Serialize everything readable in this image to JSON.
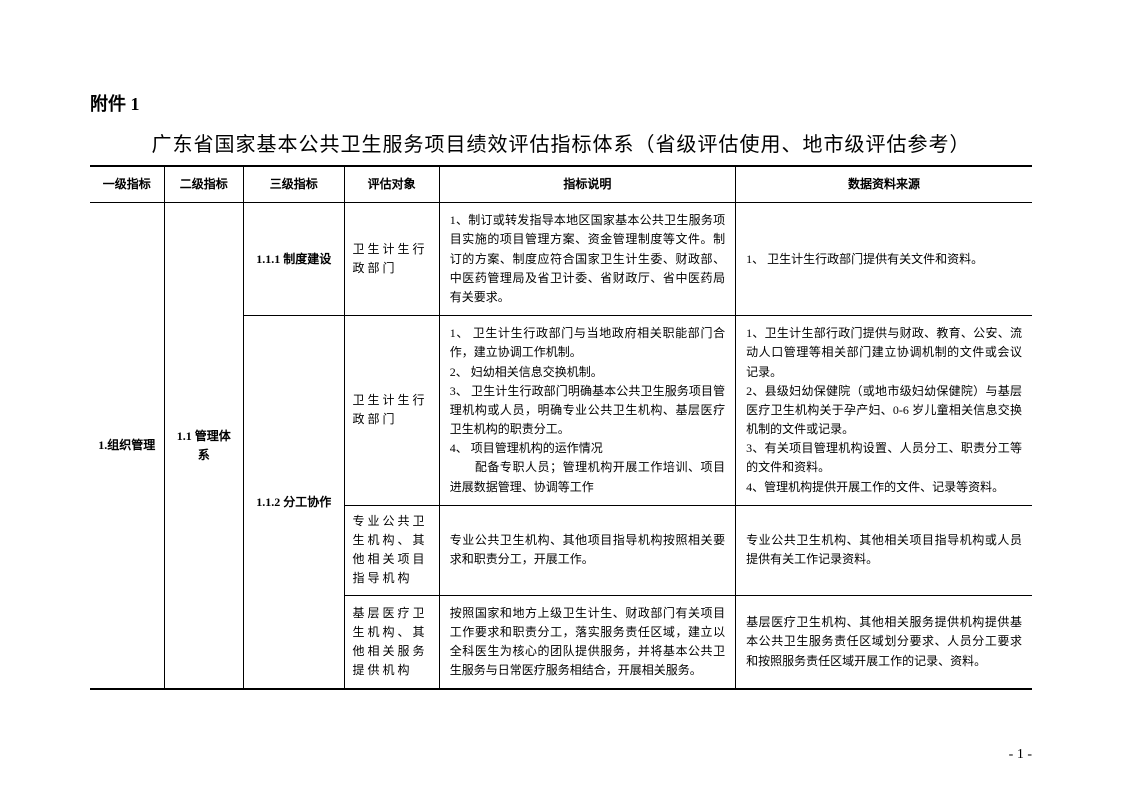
{
  "attachment_label": "附件 1",
  "main_title": "广东省国家基本公共卫生服务项目绩效评估指标体系（省级评估使用、地市级评估参考）",
  "page_number": "- 1 -",
  "headers": {
    "col1": "一级指标",
    "col2": "二级指标",
    "col3": "三级指标",
    "col4": "评估对象",
    "col5": "指标说明",
    "col6": "数据资料来源"
  },
  "level1": "1.组织管理",
  "level2": "1.1 管理体系",
  "rows": [
    {
      "level3": "1.1.1 制度建设",
      "target": "卫生计生行政部门",
      "desc": "1、制订或转发指导本地区国家基本公共卫生服务项目实施的项目管理方案、资金管理制度等文件。制订的方案、制度应符合国家卫生计生委、财政部、中医药管理局及省卫计委、省财政厅、省中医药局有关要求。",
      "source": "1、 卫生计生行政部门提供有关文件和资料。"
    },
    {
      "level3": "1.1.2 分工协作",
      "target": "卫生计生行政部门",
      "desc": "1、 卫生计生行政部门与当地政府相关职能部门合作，建立协调工作机制。\n2、 妇幼相关信息交换机制。\n3、 卫生计生行政部门明确基本公共卫生服务项目管理机构或人员，明确专业公共卫生机构、基层医疗卫生机构的职责分工。\n4、 项目管理机构的运作情况\n　　配备专职人员；管理机构开展工作培训、项目进展数据管理、协调等工作",
      "source": "1、卫生计生部行政门提供与财政、教育、公安、流动人口管理等相关部门建立协调机制的文件或会议记录。\n2、县级妇幼保健院（或地市级妇幼保健院）与基层医疗卫生机构关于孕产妇、0-6 岁儿童相关信息交换机制的文件或记录。\n3、有关项目管理机构设置、人员分工、职责分工等的文件和资料。\n4、管理机构提供开展工作的文件、记录等资料。"
    },
    {
      "target": "专业公共卫生机构、其他相关项目指导机构",
      "desc": "专业公共卫生机构、其他项目指导机构按照相关要求和职责分工，开展工作。",
      "source": "专业公共卫生机构、其他相关项目指导机构或人员提供有关工作记录资料。"
    },
    {
      "target": "基层医疗卫生机构、其他相关服务提供机构",
      "desc": "按照国家和地方上级卫生计生、财政部门有关项目工作要求和职责分工，落实服务责任区域，建立以全科医生为核心的团队提供服务，并将基本公共卫生服务与日常医疗服务相结合，开展相关服务。",
      "source": "基层医疗卫生机构、其他相关服务提供机构提供基本公共卫生服务责任区域划分要求、人员分工要求和按照服务责任区域开展工作的记录、资料。"
    }
  ]
}
